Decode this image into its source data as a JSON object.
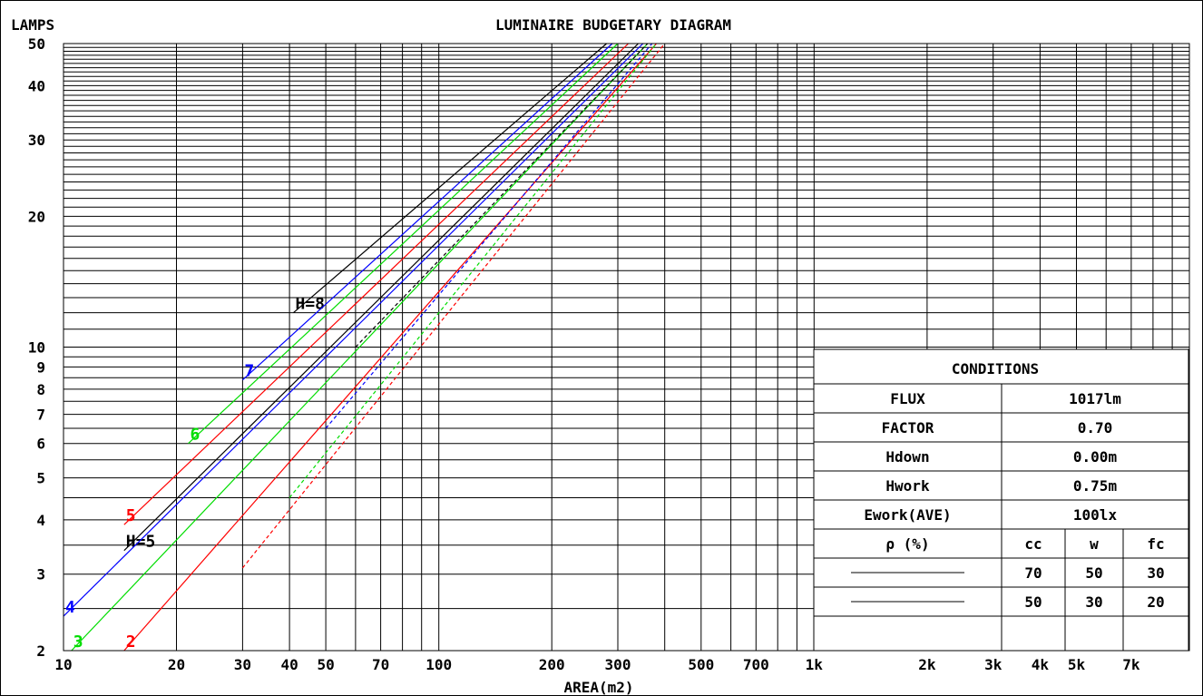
{
  "chart_data": {
    "type": "line",
    "title": "LUMINAIRE BUDGETARY DIAGRAM",
    "ylabel": "LAMPS",
    "xlabel": "AREA(m2)",
    "x_scale": "log",
    "y_scale": "log",
    "xlim": [
      10,
      10000
    ],
    "ylim": [
      2,
      50
    ],
    "x_ticks": [
      {
        "value": 10,
        "label": "10"
      },
      {
        "value": 20,
        "label": "20"
      },
      {
        "value": 30,
        "label": "30"
      },
      {
        "value": 40,
        "label": "40"
      },
      {
        "value": 50,
        "label": "50"
      },
      {
        "value": 70,
        "label": "70"
      },
      {
        "value": 100,
        "label": "100"
      },
      {
        "value": 200,
        "label": "200"
      },
      {
        "value": 300,
        "label": "300"
      },
      {
        "value": 500,
        "label": "500"
      },
      {
        "value": 700,
        "label": "700"
      },
      {
        "value": 1000,
        "label": "1k"
      },
      {
        "value": 2000,
        "label": "2k"
      },
      {
        "value": 3000,
        "label": "3k"
      },
      {
        "value": 4000,
        "label": "4k"
      },
      {
        "value": 5000,
        "label": "5k"
      },
      {
        "value": 7000,
        "label": "7k"
      }
    ],
    "y_ticks": [
      {
        "value": 2,
        "label": "2"
      },
      {
        "value": 3,
        "label": "3"
      },
      {
        "value": 4,
        "label": "4"
      },
      {
        "value": 5,
        "label": "5"
      },
      {
        "value": 6,
        "label": "6"
      },
      {
        "value": 7,
        "label": "7"
      },
      {
        "value": 8,
        "label": "8"
      },
      {
        "value": 9,
        "label": "9"
      },
      {
        "value": 10,
        "label": "10"
      },
      {
        "value": 20,
        "label": "20"
      },
      {
        "value": 30,
        "label": "30"
      },
      {
        "value": 40,
        "label": "40"
      },
      {
        "value": 50,
        "label": "50"
      }
    ],
    "grid": true,
    "series": [
      {
        "label": "H=8",
        "color": "#000000",
        "style": "solid",
        "x": [
          41,
          280
        ],
        "y": [
          12,
          50
        ]
      },
      {
        "label": "7",
        "color": "#0000ff",
        "style": "solid",
        "x": [
          30,
          290
        ],
        "y": [
          8.4,
          50
        ]
      },
      {
        "label": "6",
        "color": "#00dd00",
        "style": "solid",
        "x": [
          21.5,
          300
        ],
        "y": [
          6,
          50
        ]
      },
      {
        "label": "5",
        "color": "#ff0000",
        "style": "solid",
        "x": [
          14.5,
          320
        ],
        "y": [
          3.9,
          50
        ]
      },
      {
        "label": "H=5",
        "color": "#000000",
        "style": "solid",
        "x": [
          14.5,
          340
        ],
        "y": [
          3.4,
          50
        ]
      },
      {
        "label": "4",
        "color": "#0000ff",
        "style": "solid",
        "x": [
          10,
          350
        ],
        "y": [
          2.4,
          50
        ]
      },
      {
        "label": "3",
        "color": "#00dd00",
        "style": "solid",
        "x": [
          10.5,
          360
        ],
        "y": [
          2,
          50
        ]
      },
      {
        "label": "2",
        "color": "#ff0000",
        "style": "solid",
        "x": [
          14.5,
          380
        ],
        "y": [
          2,
          50
        ]
      },
      {
        "label": "",
        "color": "#000000",
        "style": "dashed",
        "x": [
          60,
          360
        ],
        "y": [
          10,
          50
        ]
      },
      {
        "label": "",
        "color": "#0000ff",
        "style": "dashed",
        "x": [
          50,
          370
        ],
        "y": [
          6.5,
          50
        ]
      },
      {
        "label": "",
        "color": "#00dd00",
        "style": "dashed",
        "x": [
          40,
          380
        ],
        "y": [
          4.5,
          50
        ]
      },
      {
        "label": "",
        "color": "#ff0000",
        "style": "dashed",
        "x": [
          30,
          400
        ],
        "y": [
          3.1,
          50
        ]
      }
    ]
  },
  "conditions": {
    "header": "CONDITIONS",
    "rows": [
      {
        "name": "FLUX",
        "value": "1017lm"
      },
      {
        "name": "FACTOR",
        "value": "0.70"
      },
      {
        "name": "Hdown",
        "value": "0.00m"
      },
      {
        "name": "Hwork",
        "value": "0.75m"
      },
      {
        "name": "Ework(AVE)",
        "value": "100lx"
      }
    ],
    "reflectance": {
      "label": "ρ (%)",
      "columns": [
        "cc",
        "w",
        "fc"
      ],
      "rows": [
        {
          "line_style": "solid",
          "values": [
            "70",
            "50",
            "30"
          ]
        },
        {
          "line_style": "dashed",
          "values": [
            "50",
            "30",
            "20"
          ]
        }
      ]
    }
  },
  "colors": {
    "grid": "#000000",
    "frame": "#000000",
    "background": "#ffffff"
  }
}
